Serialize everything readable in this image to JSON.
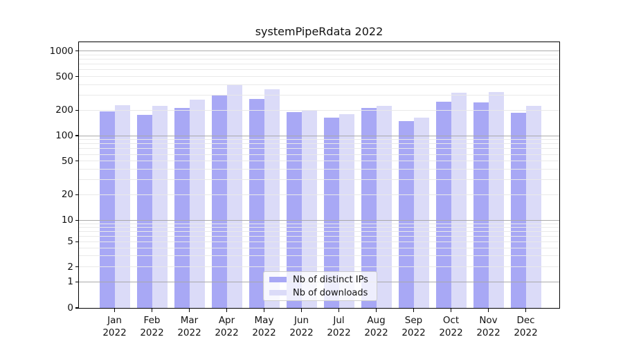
{
  "title": "systemPipeRdata 2022",
  "chart_data": {
    "type": "bar",
    "title": "systemPipeRdata 2022",
    "categories": [
      "Jan 2022",
      "Feb 2022",
      "Mar 2022",
      "Apr 2022",
      "May 2022",
      "Jun 2022",
      "Jul 2022",
      "Aug 2022",
      "Sep 2022",
      "Oct 2022",
      "Nov 2022",
      "Dec 2022"
    ],
    "series": [
      {
        "name": "Nb of distinct IPs",
        "color": "#a8a8f5",
        "values": [
          195,
          176,
          211,
          300,
          270,
          188,
          163,
          214,
          148,
          250,
          247,
          185
        ]
      },
      {
        "name": "Nb of downloads",
        "color": "#dbdbf8",
        "values": [
          230,
          223,
          264,
          405,
          352,
          201,
          180,
          226,
          163,
          323,
          329,
          226
        ]
      }
    ],
    "yscale": "symlog",
    "yticks": [
      0,
      1,
      2,
      5,
      10,
      20,
      50,
      100,
      200,
      500,
      1000
    ],
    "ylim": [
      0,
      1290
    ],
    "xlabel": "",
    "ylabel": "",
    "grid": true,
    "legend_position": "lower center"
  }
}
